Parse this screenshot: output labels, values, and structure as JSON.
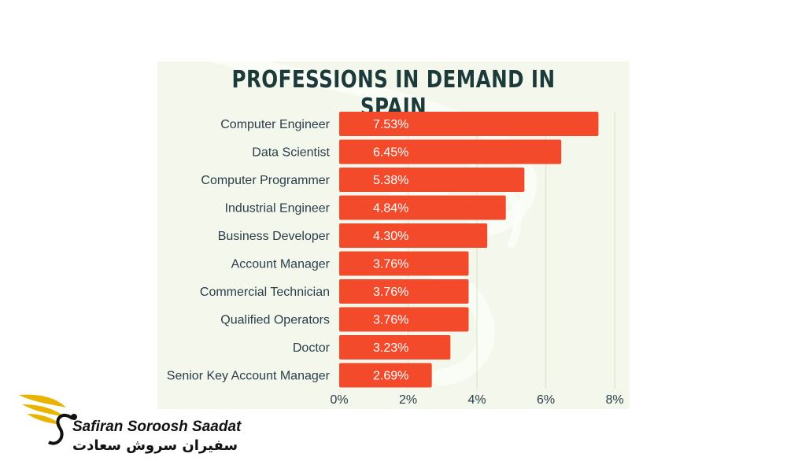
{
  "chart_data": {
    "type": "bar",
    "orientation": "horizontal",
    "title": "PROFESSIONS IN DEMAND IN SPAIN",
    "categories": [
      "Computer Engineer",
      "Data Scientist",
      "Computer Programmer",
      "Industrial Engineer",
      "Business Developer",
      "Account Manager",
      "Commercial Technician",
      "Qualified Operators",
      "Doctor",
      "Senior Key Account Manager"
    ],
    "values": [
      7.53,
      6.45,
      5.38,
      4.84,
      4.3,
      3.76,
      3.76,
      3.76,
      3.23,
      2.69
    ],
    "labels": [
      "7.53%",
      "6.45%",
      "5.38%",
      "4.84%",
      "4.30%",
      "3.76%",
      "3.76%",
      "3.76%",
      "3.23%",
      "2.69%"
    ],
    "xlim": [
      0,
      8
    ],
    "xticks": [
      0,
      2,
      4,
      6,
      8
    ],
    "xtick_labels": [
      "0%",
      "2%",
      "4%",
      "6%",
      "8%"
    ],
    "grid": true,
    "bar_color": "#f44a2c"
  },
  "watermark": {
    "brand_en": "Safiran Soroosh Saadat",
    "brand_fa": "سفیران سروش سعادت"
  },
  "colors": {
    "background": "#ffffff",
    "panel": "#f4f8ec",
    "title": "#1c3a3a",
    "label": "#2a3d4a",
    "logo_gold": "#e8b400"
  }
}
